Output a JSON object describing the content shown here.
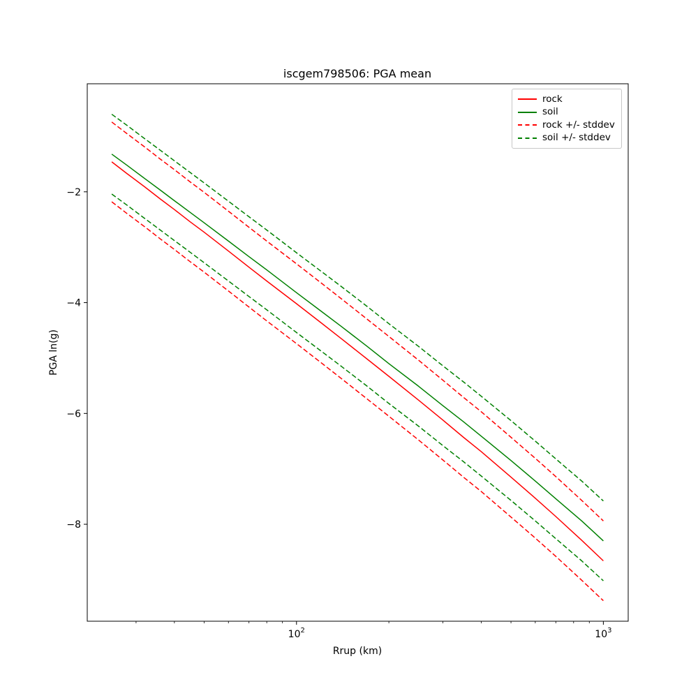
{
  "figure": {
    "background": "#ffffff",
    "axes_border_color": "#000000",
    "legend_border_color": "#c7c7c7"
  },
  "chart_data": {
    "type": "line",
    "title": "iscgem798506: PGA mean",
    "xlabel": "Rrup (km)",
    "ylabel": "PGA ln(g)",
    "x_scale": "log",
    "y_scale": "linear",
    "grid": false,
    "legend_position": "upper right",
    "xlim": [
      20.8,
      1205
    ],
    "ylim": [
      -9.75,
      -0.05
    ],
    "y_ticks": [
      -2,
      -4,
      -6,
      -8
    ],
    "y_tick_labels": [
      "−2",
      "−4",
      "−6",
      "−8"
    ],
    "x_major_ticks": [
      {
        "value": 100,
        "base": "10",
        "exponent": "2"
      },
      {
        "value": 1000,
        "base": "10",
        "exponent": "3"
      }
    ],
    "x_minor_ticks": [
      30,
      40,
      50,
      60,
      70,
      80,
      90,
      200,
      300,
      400,
      500,
      600,
      700,
      800,
      900
    ],
    "x": [
      25,
      28,
      32,
      36,
      40,
      45,
      50,
      60,
      70,
      80,
      100,
      120,
      140,
      170,
      200,
      250,
      300,
      350,
      400,
      500,
      600,
      700,
      850,
      1000
    ],
    "series": [
      {
        "label": "rock",
        "color": "#ff0000",
        "dash": false,
        "values": [
          -1.46,
          -1.67,
          -1.91,
          -2.13,
          -2.32,
          -2.54,
          -2.73,
          -3.07,
          -3.36,
          -3.61,
          -4.02,
          -4.36,
          -4.65,
          -5.02,
          -5.33,
          -5.76,
          -6.12,
          -6.43,
          -6.69,
          -7.15,
          -7.53,
          -7.86,
          -8.29,
          -8.66
        ]
      },
      {
        "label": "soil",
        "color": "#008000",
        "dash": false,
        "values": [
          -1.32,
          -1.52,
          -1.76,
          -1.97,
          -2.16,
          -2.37,
          -2.56,
          -2.89,
          -3.17,
          -3.41,
          -3.82,
          -4.15,
          -4.43,
          -4.79,
          -5.1,
          -5.51,
          -5.86,
          -6.15,
          -6.41,
          -6.85,
          -7.22,
          -7.54,
          -7.94,
          -8.3
        ]
      },
      {
        "label": "rock +/- stddev",
        "color": "#ff0000",
        "dash": true,
        "stddev": 0.72,
        "values_upper": [
          -0.74,
          -0.95,
          -1.19,
          -1.41,
          -1.6,
          -1.82,
          -2.01,
          -2.35,
          -2.64,
          -2.89,
          -3.3,
          -3.64,
          -3.93,
          -4.3,
          -4.61,
          -5.04,
          -5.4,
          -5.71,
          -5.97,
          -6.43,
          -6.81,
          -7.14,
          -7.57,
          -7.94
        ],
        "values_lower": [
          -2.18,
          -2.39,
          -2.63,
          -2.85,
          -3.04,
          -3.26,
          -3.45,
          -3.79,
          -4.08,
          -4.33,
          -4.74,
          -5.08,
          -5.37,
          -5.74,
          -6.05,
          -6.48,
          -6.84,
          -7.15,
          -7.41,
          -7.87,
          -8.25,
          -8.58,
          -9.01,
          -9.38
        ]
      },
      {
        "label": "soil +/- stddev",
        "color": "#008000",
        "dash": true,
        "stddev": 0.72,
        "values_upper": [
          -0.6,
          -0.8,
          -1.04,
          -1.25,
          -1.44,
          -1.65,
          -1.84,
          -2.17,
          -2.45,
          -2.69,
          -3.1,
          -3.43,
          -3.71,
          -4.07,
          -4.38,
          -4.79,
          -5.14,
          -5.43,
          -5.69,
          -6.13,
          -6.5,
          -6.82,
          -7.22,
          -7.58
        ],
        "values_lower": [
          -2.04,
          -2.24,
          -2.48,
          -2.69,
          -2.88,
          -3.09,
          -3.28,
          -3.61,
          -3.89,
          -4.13,
          -4.54,
          -4.87,
          -5.15,
          -5.51,
          -5.82,
          -6.23,
          -6.58,
          -6.87,
          -7.13,
          -7.57,
          -7.94,
          -8.26,
          -8.66,
          -9.02
        ]
      }
    ]
  }
}
